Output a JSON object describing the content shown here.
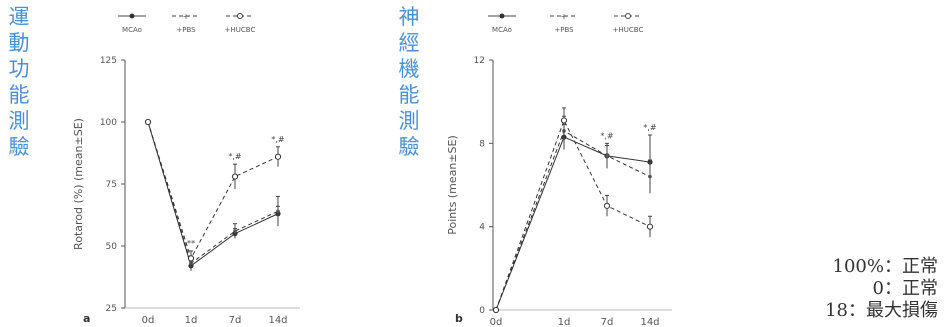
{
  "titles": {
    "a": "運動功能測驗",
    "b": "神經機能測驗"
  },
  "legend_items": [
    {
      "label": "MCAo",
      "marker": "filled-circle",
      "dash": "solid"
    },
    {
      "label": "+PBS",
      "marker": "plus",
      "dash": "dashed"
    },
    {
      "label": "+HUCBC",
      "marker": "open-circle",
      "dash": "dashed"
    }
  ],
  "notes": [
    "100%：正常",
    "0：正常",
    "18：最大損傷"
  ],
  "chart_data": [
    {
      "type": "line",
      "panel": "a",
      "ylabel": "Rotarod (%) (mean±SE)",
      "xlabel": "",
      "categories": [
        "0d",
        "1d",
        "7d",
        "14d"
      ],
      "ylim": [
        25,
        125
      ],
      "yticks": [
        25,
        50,
        75,
        100,
        125
      ],
      "series": [
        {
          "name": "MCAo",
          "values": [
            100,
            42,
            55,
            63
          ],
          "errors": [
            0,
            2,
            2,
            3
          ]
        },
        {
          "name": "+PBS",
          "values": [
            100,
            43,
            56,
            64
          ],
          "errors": [
            0,
            3,
            3,
            6
          ]
        },
        {
          "name": "+HUCBC",
          "values": [
            100,
            45,
            78,
            86
          ],
          "errors": [
            0,
            3,
            5,
            4
          ]
        }
      ],
      "annotations": [
        {
          "category": "1d",
          "text": "**"
        },
        {
          "category": "7d",
          "text": "*,#"
        },
        {
          "category": "14d",
          "text": "*,#"
        }
      ],
      "legend": "top"
    },
    {
      "type": "line",
      "panel": "b",
      "ylabel": "Points (mean±SE)",
      "xlabel": "",
      "categories": [
        "0d",
        "1d",
        "7d",
        "14d"
      ],
      "ylim": [
        0,
        12
      ],
      "yticks": [
        0,
        4,
        8,
        12
      ],
      "series": [
        {
          "name": "MCAo",
          "values": [
            0,
            8.3,
            7.4,
            7.1
          ],
          "errors": [
            0,
            0.6,
            0.5,
            1.3
          ]
        },
        {
          "name": "+PBS",
          "values": [
            0,
            8.6,
            7.4,
            6.4
          ],
          "errors": [
            0,
            0.7,
            0.6,
            0.8
          ]
        },
        {
          "name": "+HUCBC",
          "values": [
            0,
            9.1,
            5.0,
            4.0
          ],
          "errors": [
            0,
            0.6,
            0.5,
            0.5
          ]
        }
      ],
      "annotations": [
        {
          "category": "7d",
          "text": "*,#"
        },
        {
          "category": "14d",
          "text": "*,#"
        }
      ],
      "legend": "top"
    }
  ],
  "panel_labels": [
    "a",
    "b"
  ]
}
